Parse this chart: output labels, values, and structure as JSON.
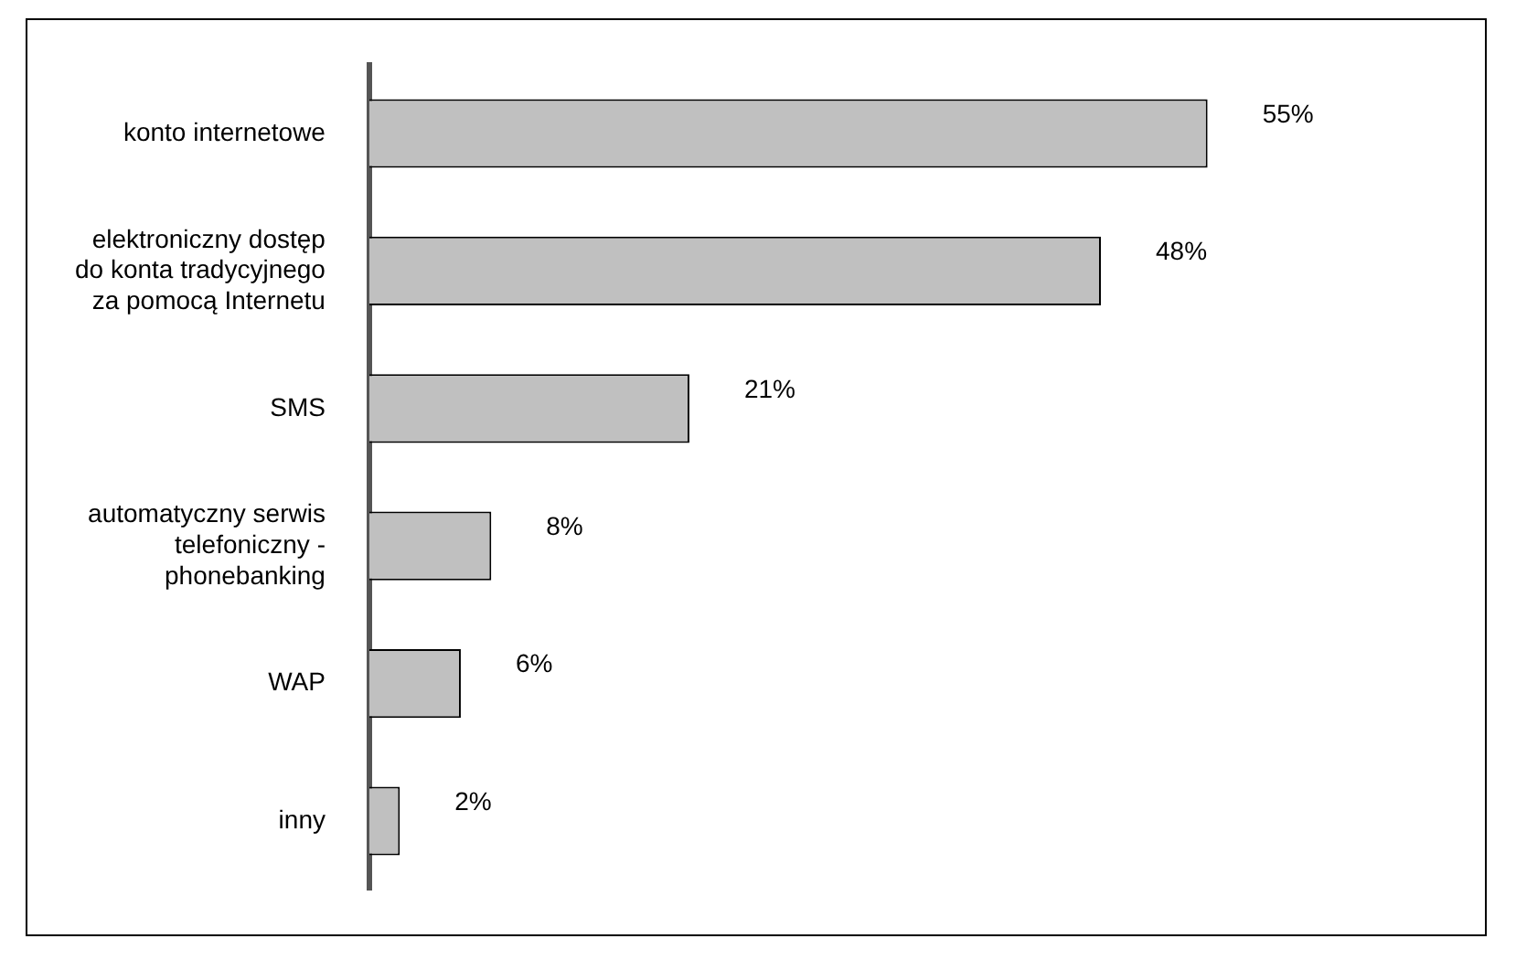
{
  "chart_data": {
    "type": "bar",
    "orientation": "horizontal",
    "categories": [
      "konto internetowe",
      "elektroniczny dostęp do konta tradycyjnego za pomocą Internetu",
      "SMS",
      "automatyczny serwis telefoniczny - phonebanking",
      "WAP",
      "inny"
    ],
    "values": [
      55,
      48,
      21,
      8,
      6,
      2
    ],
    "color": "#c0c0c0",
    "data_labels": true,
    "value_labels": [
      "55%",
      "48%",
      "21%",
      "8%",
      "6%",
      "2%"
    ]
  }
}
